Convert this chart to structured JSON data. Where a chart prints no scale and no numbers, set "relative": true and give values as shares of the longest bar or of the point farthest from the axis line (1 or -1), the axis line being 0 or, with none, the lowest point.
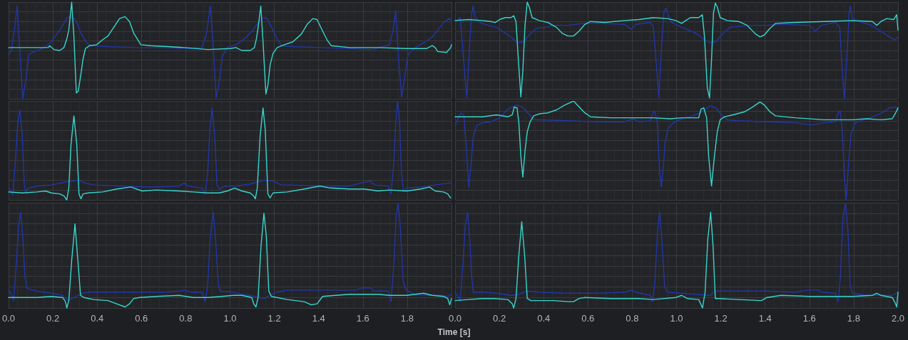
{
  "chart_data": [
    {
      "type": "line",
      "relative": true,
      "xlim": [
        0,
        2
      ],
      "xticks": [
        0,
        0.2,
        0.4,
        0.6,
        0.8,
        1,
        1.2,
        1.4,
        1.6,
        1.8,
        2
      ],
      "tick_labels": false,
      "grid": true,
      "series": [
        {
          "color": "#2236a8",
          "x": [
            0,
            0.013,
            0.026,
            0.039,
            0.064,
            0.08,
            0.092,
            0.116,
            0.141,
            0.167,
            0.193,
            0.218,
            0.244,
            0.263,
            0.276,
            0.302,
            0.327,
            0.353,
            0.372,
            0.449,
            0.578,
            0.706,
            0.809,
            0.873,
            0.892,
            0.911,
            0.924,
            0.937,
            0.953,
            0.965,
            0.988,
            1.027,
            1.065,
            1.104,
            1.13,
            1.149,
            1.168,
            1.187,
            1.213,
            1.232,
            1.284,
            1.412,
            1.54,
            1.643,
            1.72,
            1.736,
            1.748,
            1.761,
            1.775,
            1.791,
            1.804,
            1.836,
            1.874,
            1.913,
            1.938,
            1.964,
            1.99,
            2.0
          ],
          "values": [
            0.46,
            0.5,
            0.71,
            0.96,
            0.0,
            0.23,
            0.46,
            0.49,
            0.51,
            0.54,
            0.59,
            0.67,
            0.76,
            0.83,
            0.85,
            0.82,
            0.68,
            0.58,
            0.55,
            0.54,
            0.53,
            0.53,
            0.52,
            0.53,
            0.65,
            0.96,
            0.56,
            0.01,
            0.2,
            0.44,
            0.53,
            0.56,
            0.62,
            0.71,
            0.8,
            0.84,
            0.83,
            0.74,
            0.62,
            0.55,
            0.54,
            0.53,
            0.52,
            0.51,
            0.56,
            0.71,
            0.91,
            0.41,
            0.02,
            0.26,
            0.46,
            0.53,
            0.58,
            0.64,
            0.71,
            0.79,
            0.83,
            0.81
          ]
        },
        {
          "color": "#38d6cc",
          "x": [
            0,
            0.18,
            0.186,
            0.205,
            0.231,
            0.25,
            0.263,
            0.272,
            0.285,
            0.295,
            0.306,
            0.315,
            0.327,
            0.336,
            0.347,
            0.366,
            0.398,
            0.424,
            0.449,
            0.475,
            0.501,
            0.526,
            0.546,
            0.565,
            0.584,
            0.597,
            0.642,
            0.719,
            0.796,
            0.899,
            1.001,
            1.027,
            1.053,
            1.091,
            1.11,
            1.119,
            1.127,
            1.139,
            1.149,
            1.162,
            1.171,
            1.181,
            1.194,
            1.213,
            1.245,
            1.284,
            1.322,
            1.348,
            1.374,
            1.393,
            1.412,
            1.438,
            1.457,
            1.54,
            1.669,
            1.797,
            1.887,
            1.913,
            1.926,
            1.938,
            1.977,
            1.996,
            2.0
          ],
          "values": [
            0.53,
            0.53,
            0.55,
            0.51,
            0.5,
            0.53,
            0.62,
            0.71,
            1.0,
            0.65,
            0.06,
            0.08,
            0.26,
            0.41,
            0.52,
            0.55,
            0.56,
            0.61,
            0.65,
            0.74,
            0.83,
            0.85,
            0.8,
            0.68,
            0.61,
            0.56,
            0.55,
            0.54,
            0.53,
            0.51,
            0.52,
            0.53,
            0.5,
            0.5,
            0.53,
            0.62,
            0.74,
            0.96,
            0.59,
            0.05,
            0.14,
            0.35,
            0.47,
            0.53,
            0.56,
            0.59,
            0.67,
            0.77,
            0.83,
            0.82,
            0.73,
            0.61,
            0.55,
            0.53,
            0.53,
            0.52,
            0.52,
            0.55,
            0.53,
            0.49,
            0.48,
            0.53,
            0.56
          ]
        }
      ]
    },
    {
      "type": "line",
      "relative": true,
      "xlim": [
        0,
        2
      ],
      "xticks": [
        0,
        0.2,
        0.4,
        0.6,
        0.8,
        1,
        1.2,
        1.4,
        1.6,
        1.8,
        2
      ],
      "tick_labels": false,
      "grid": true,
      "series": [
        {
          "color": "#2236a8",
          "x": [
            0,
            0.014,
            0.023,
            0.033,
            0.053,
            0.066,
            0.075,
            0.082,
            0.091,
            0.111,
            0.149,
            0.188,
            0.226,
            0.252,
            0.284,
            0.31,
            0.342,
            0.368,
            0.406,
            0.445,
            0.509,
            0.586,
            0.663,
            0.766,
            0.794,
            0.817,
            0.882,
            0.895,
            0.907,
            0.92,
            0.933,
            0.943,
            0.952,
            0.961,
            0.978,
            1.023,
            1.087,
            1.126,
            1.152,
            1.177,
            1.211,
            1.242,
            1.28,
            1.344,
            1.408,
            1.473,
            1.602,
            1.627,
            1.653,
            1.717,
            1.737,
            1.749,
            1.758,
            1.769,
            1.779,
            1.785,
            1.794,
            1.82,
            1.871,
            1.923,
            1.961,
            1.987,
            2.0
          ],
          "values": [
            0.8,
            0.82,
            0.84,
            0.56,
            0.01,
            0.56,
            0.89,
            0.96,
            0.84,
            0.79,
            0.76,
            0.74,
            0.68,
            0.64,
            0.58,
            0.59,
            0.68,
            0.73,
            0.74,
            0.76,
            0.76,
            0.78,
            0.78,
            0.77,
            0.72,
            0.77,
            0.79,
            0.74,
            0.41,
            0.01,
            0.56,
            0.89,
            0.94,
            0.87,
            0.79,
            0.74,
            0.68,
            0.61,
            0.58,
            0.59,
            0.68,
            0.74,
            0.75,
            0.76,
            0.76,
            0.77,
            0.76,
            0.7,
            0.76,
            0.79,
            0.74,
            0.26,
            0.0,
            0.41,
            0.89,
            0.96,
            0.83,
            0.8,
            0.77,
            0.7,
            0.64,
            0.61,
            0.64
          ]
        },
        {
          "color": "#38d6cc",
          "x": [
            0,
            0.059,
            0.123,
            0.162,
            0.181,
            0.201,
            0.226,
            0.252,
            0.265,
            0.275,
            0.284,
            0.297,
            0.306,
            0.316,
            0.326,
            0.335,
            0.348,
            0.38,
            0.419,
            0.458,
            0.483,
            0.509,
            0.535,
            0.56,
            0.586,
            0.612,
            0.676,
            0.766,
            0.83,
            0.895,
            0.959,
            0.997,
            1.023,
            1.042,
            1.062,
            1.1,
            1.116,
            1.126,
            1.139,
            1.149,
            1.158,
            1.167,
            1.175,
            1.184,
            1.197,
            1.229,
            1.28,
            1.319,
            1.357,
            1.377,
            1.396,
            1.422,
            1.447,
            1.537,
            1.666,
            1.794,
            1.884,
            1.904,
            1.923,
            1.949,
            1.981,
            1.994,
            2.0
          ],
          "values": [
            0.81,
            0.82,
            0.81,
            0.8,
            0.79,
            0.82,
            0.84,
            0.84,
            0.86,
            0.8,
            0.47,
            0.02,
            0.29,
            0.77,
            1.0,
            0.95,
            0.84,
            0.81,
            0.79,
            0.74,
            0.68,
            0.65,
            0.65,
            0.7,
            0.77,
            0.8,
            0.79,
            0.81,
            0.82,
            0.84,
            0.83,
            0.81,
            0.78,
            0.81,
            0.84,
            0.84,
            0.87,
            0.65,
            0.11,
            0.01,
            0.41,
            0.89,
            0.99,
            0.95,
            0.84,
            0.81,
            0.8,
            0.76,
            0.67,
            0.64,
            0.66,
            0.73,
            0.78,
            0.79,
            0.8,
            0.81,
            0.8,
            0.76,
            0.8,
            0.83,
            0.82,
            0.87,
            0.71
          ]
        }
      ]
    },
    {
      "type": "line",
      "relative": true,
      "xlim": [
        0,
        2
      ],
      "xticks": [
        0,
        0.2,
        0.4,
        0.6,
        0.8,
        1,
        1.2,
        1.4,
        1.6,
        1.8,
        2
      ],
      "tick_labels": false,
      "grid": true,
      "series": [
        {
          "color": "#2236a8",
          "x": [
            0,
            0.01,
            0.019,
            0.032,
            0.041,
            0.051,
            0.062,
            0.071,
            0.077,
            0.09,
            0.128,
            0.193,
            0.257,
            0.315,
            0.347,
            0.385,
            0.513,
            0.642,
            0.77,
            0.793,
            0.809,
            0.873,
            0.888,
            0.899,
            0.909,
            0.919,
            0.931,
            0.941,
            0.95,
            0.976,
            1.027,
            1.091,
            1.155,
            1.194,
            1.232,
            1.284,
            1.412,
            1.54,
            1.592,
            1.63,
            1.656,
            1.714,
            1.727,
            1.739,
            1.748,
            1.756,
            1.765,
            1.774,
            1.784,
            1.797,
            1.861,
            1.926,
            1.99,
            2.0
          ],
          "values": [
            0.12,
            0.08,
            0.05,
            0.42,
            0.77,
            0.91,
            0.65,
            0.15,
            0.08,
            0.12,
            0.14,
            0.15,
            0.18,
            0.2,
            0.17,
            0.15,
            0.14,
            0.13,
            0.14,
            0.17,
            0.14,
            0.12,
            0.06,
            0.27,
            0.71,
            0.93,
            0.65,
            0.15,
            0.11,
            0.14,
            0.14,
            0.16,
            0.2,
            0.19,
            0.15,
            0.15,
            0.14,
            0.14,
            0.17,
            0.19,
            0.15,
            0.14,
            0.06,
            0.36,
            0.77,
            1.0,
            0.82,
            0.27,
            0.08,
            0.12,
            0.13,
            0.15,
            0.17,
            0.17
          ]
        },
        {
          "color": "#38d6cc",
          "x": [
            0,
            0.064,
            0.128,
            0.167,
            0.193,
            0.231,
            0.25,
            0.263,
            0.272,
            0.282,
            0.295,
            0.308,
            0.318,
            0.327,
            0.336,
            0.359,
            0.424,
            0.488,
            0.552,
            0.603,
            0.668,
            0.77,
            0.834,
            0.899,
            0.95,
            0.988,
            1.021,
            1.053,
            1.091,
            1.107,
            1.114,
            1.123,
            1.136,
            1.149,
            1.159,
            1.171,
            1.181,
            1.194,
            1.258,
            1.335,
            1.406,
            1.451,
            1.54,
            1.605,
            1.669,
            1.72,
            1.797,
            1.861,
            1.9,
            1.926,
            1.964,
            1.983,
            1.996
          ],
          "values": [
            0.08,
            0.07,
            0.08,
            0.09,
            0.07,
            0.06,
            0.04,
            0.0,
            0.12,
            0.56,
            0.85,
            0.56,
            0.06,
            0.01,
            0.06,
            0.07,
            0.08,
            0.11,
            0.13,
            0.09,
            0.1,
            0.09,
            0.08,
            0.07,
            0.07,
            0.09,
            0.12,
            0.09,
            0.07,
            0.04,
            0.01,
            0.12,
            0.65,
            0.93,
            0.71,
            0.06,
            0.02,
            0.07,
            0.08,
            0.11,
            0.14,
            0.12,
            0.11,
            0.11,
            0.09,
            0.1,
            0.09,
            0.11,
            0.13,
            0.09,
            0.08,
            0.06,
            0.02
          ]
        }
      ]
    },
    {
      "type": "line",
      "relative": true,
      "xlim": [
        0,
        2
      ],
      "xticks": [
        0,
        0.2,
        0.4,
        0.6,
        0.8,
        1,
        1.2,
        1.4,
        1.6,
        1.8,
        2
      ],
      "tick_labels": false,
      "grid": true,
      "series": [
        {
          "color": "#2236a8",
          "x": [
            0,
            0.014,
            0.027,
            0.04,
            0.049,
            0.062,
            0.072,
            0.082,
            0.098,
            0.123,
            0.162,
            0.201,
            0.239,
            0.278,
            0.303,
            0.329,
            0.355,
            0.38,
            0.509,
            0.638,
            0.766,
            0.805,
            0.83,
            0.882,
            0.895,
            0.902,
            0.913,
            0.923,
            0.931,
            0.94,
            0.949,
            0.961,
            0.985,
            1.023,
            1.075,
            1.113,
            1.152,
            1.177,
            1.203,
            1.229,
            1.28,
            1.408,
            1.537,
            1.602,
            1.614,
            1.666,
            1.717,
            1.733,
            1.74,
            1.749,
            1.758,
            1.766,
            1.775,
            1.788,
            1.807,
            1.846,
            1.897,
            1.936,
            1.961,
            1.987,
            2.0
          ],
          "values": [
            0.75,
            0.83,
            0.88,
            0.85,
            0.58,
            0.13,
            0.36,
            0.64,
            0.75,
            0.78,
            0.79,
            0.83,
            0.92,
            0.96,
            0.94,
            0.88,
            0.81,
            0.81,
            0.8,
            0.79,
            0.79,
            0.82,
            0.79,
            0.8,
            0.89,
            0.89,
            0.78,
            0.31,
            0.13,
            0.33,
            0.58,
            0.72,
            0.78,
            0.82,
            0.85,
            0.89,
            0.95,
            0.93,
            0.86,
            0.81,
            0.8,
            0.79,
            0.78,
            0.76,
            0.76,
            0.78,
            0.79,
            0.89,
            0.89,
            0.67,
            0.22,
            0.0,
            0.31,
            0.67,
            0.78,
            0.81,
            0.85,
            0.89,
            0.93,
            0.94,
            0.92
          ]
        },
        {
          "color": "#38d6cc",
          "x": [
            0,
            0.123,
            0.188,
            0.239,
            0.258,
            0.267,
            0.28,
            0.288,
            0.297,
            0.306,
            0.316,
            0.326,
            0.339,
            0.355,
            0.38,
            0.419,
            0.458,
            0.496,
            0.535,
            0.56,
            0.586,
            0.612,
            0.702,
            0.792,
            0.895,
            0.972,
            1.023,
            1.1,
            1.111,
            1.123,
            1.136,
            1.145,
            1.158,
            1.171,
            1.184,
            1.197,
            1.216,
            1.254,
            1.306,
            1.344,
            1.377,
            1.396,
            1.422,
            1.447,
            1.537,
            1.666,
            1.794,
            1.859,
            1.923,
            1.974,
            1.994,
            2.0
          ],
          "values": [
            0.84,
            0.84,
            0.86,
            0.84,
            0.86,
            0.94,
            0.93,
            0.78,
            0.44,
            0.23,
            0.5,
            0.69,
            0.79,
            0.85,
            0.87,
            0.88,
            0.91,
            0.96,
            1.0,
            0.94,
            0.88,
            0.84,
            0.83,
            0.83,
            0.83,
            0.82,
            0.83,
            0.83,
            0.92,
            0.93,
            0.83,
            0.44,
            0.14,
            0.44,
            0.69,
            0.81,
            0.84,
            0.86,
            0.89,
            0.94,
            0.99,
            0.96,
            0.89,
            0.85,
            0.83,
            0.81,
            0.81,
            0.82,
            0.81,
            0.82,
            0.9,
            0.93
          ]
        }
      ]
    },
    {
      "type": "line",
      "relative": true,
      "xlim": [
        0,
        2
      ],
      "xticks": [
        {
          "value": 0,
          "label": "0.0"
        },
        0.2,
        0.4,
        0.6,
        0.8,
        {
          "value": 1,
          "label": "1.0"
        },
        1.2,
        1.4,
        1.6,
        1.8,
        {
          "value": 2,
          "label": null
        }
      ],
      "tick_labels": "x",
      "grid": true,
      "xlabel": "Time [s]",
      "series": [
        {
          "color": "#2236a8",
          "x": [
            0,
            0.013,
            0.023,
            0.036,
            0.046,
            0.055,
            0.064,
            0.074,
            0.083,
            0.103,
            0.128,
            0.193,
            0.244,
            0.257,
            0.27,
            0.295,
            0.334,
            0.359,
            0.449,
            0.578,
            0.706,
            0.77,
            0.796,
            0.822,
            0.873,
            0.888,
            0.899,
            0.911,
            0.924,
            0.935,
            0.947,
            0.956,
            1.014,
            1.053,
            1.091,
            1.13,
            1.155,
            1.181,
            1.207,
            1.258,
            1.348,
            1.476,
            1.566,
            1.598,
            1.637,
            1.65,
            1.714,
            1.727,
            1.739,
            1.75,
            1.759,
            1.769,
            1.782,
            1.795,
            1.836,
            1.9,
            1.951,
            1.983,
            2.0
          ],
          "values": [
            0.17,
            0.13,
            0.07,
            0.45,
            0.8,
            0.91,
            0.68,
            0.3,
            0.19,
            0.17,
            0.16,
            0.14,
            0.12,
            0.09,
            0.07,
            0.1,
            0.14,
            0.15,
            0.15,
            0.15,
            0.15,
            0.16,
            0.17,
            0.15,
            0.15,
            0.06,
            0.22,
            0.68,
            0.91,
            0.65,
            0.22,
            0.16,
            0.15,
            0.13,
            0.12,
            0.1,
            0.09,
            0.12,
            0.15,
            0.17,
            0.17,
            0.17,
            0.17,
            0.19,
            0.19,
            0.16,
            0.16,
            0.06,
            0.39,
            0.86,
            1.0,
            0.77,
            0.25,
            0.17,
            0.13,
            0.12,
            0.12,
            0.11,
            0.13
          ]
        },
        {
          "color": "#38d6cc",
          "x": [
            0,
            0.064,
            0.128,
            0.193,
            0.244,
            0.257,
            0.263,
            0.272,
            0.285,
            0.3,
            0.313,
            0.325,
            0.34,
            0.385,
            0.449,
            0.488,
            0.526,
            0.546,
            0.565,
            0.591,
            0.668,
            0.77,
            0.834,
            0.899,
            0.963,
            1.014,
            1.053,
            1.098,
            1.107,
            1.117,
            1.127,
            1.14,
            1.153,
            1.164,
            1.175,
            1.187,
            1.258,
            1.335,
            1.367,
            1.393,
            1.418,
            1.476,
            1.54,
            1.669,
            1.72,
            1.797,
            1.874,
            1.913,
            1.964,
            1.983,
            1.992,
            2.0
          ],
          "values": [
            0.1,
            0.1,
            0.1,
            0.11,
            0.1,
            0.06,
            0.0,
            0.07,
            0.45,
            0.8,
            0.45,
            0.12,
            0.1,
            0.08,
            0.07,
            0.04,
            0.01,
            0.04,
            0.09,
            0.1,
            0.11,
            0.12,
            0.1,
            0.1,
            0.11,
            0.12,
            0.12,
            0.1,
            0.04,
            0.01,
            0.1,
            0.59,
            0.9,
            0.68,
            0.16,
            0.11,
            0.08,
            0.06,
            0.03,
            0.04,
            0.11,
            0.12,
            0.13,
            0.13,
            0.12,
            0.12,
            0.14,
            0.12,
            0.11,
            0.09,
            0.03,
            0.09
          ]
        }
      ]
    },
    {
      "type": "line",
      "relative": true,
      "xlim": [
        0,
        2
      ],
      "xticks": [
        {
          "value": 0,
          "label": "0.0"
        },
        0.2,
        0.4,
        0.6,
        0.8,
        {
          "value": 1,
          "label": "1.0"
        },
        1.2,
        1.4,
        1.6,
        1.8,
        {
          "value": 2,
          "label": "2.0"
        }
      ],
      "tick_labels": "x",
      "grid": true,
      "series": [
        {
          "color": "#2236a8",
          "x": [
            0,
            0.014,
            0.023,
            0.036,
            0.046,
            0.057,
            0.066,
            0.075,
            0.082,
            0.123,
            0.188,
            0.252,
            0.29,
            0.323,
            0.38,
            0.509,
            0.638,
            0.766,
            0.798,
            0.817,
            0.882,
            0.892,
            0.902,
            0.914,
            0.924,
            0.933,
            0.946,
            0.959,
            1.023,
            1.087,
            1.152,
            1.177,
            1.28,
            1.408,
            1.537,
            1.595,
            1.64,
            1.653,
            1.717,
            1.73,
            1.74,
            1.751,
            1.763,
            1.774,
            1.784,
            1.794,
            1.859,
            1.923,
            1.974,
            2.0
          ],
          "values": [
            0.15,
            0.11,
            0.06,
            0.44,
            0.79,
            0.91,
            0.67,
            0.3,
            0.15,
            0.15,
            0.14,
            0.12,
            0.13,
            0.16,
            0.15,
            0.14,
            0.14,
            0.15,
            0.17,
            0.15,
            0.12,
            0.06,
            0.24,
            0.73,
            0.91,
            0.67,
            0.21,
            0.15,
            0.14,
            0.13,
            0.12,
            0.16,
            0.16,
            0.16,
            0.15,
            0.17,
            0.17,
            0.15,
            0.14,
            0.06,
            0.3,
            0.85,
            1.0,
            0.73,
            0.21,
            0.14,
            0.12,
            0.12,
            0.12,
            0.15
          ]
        },
        {
          "color": "#38d6cc",
          "x": [
            0,
            0.059,
            0.123,
            0.175,
            0.239,
            0.258,
            0.265,
            0.275,
            0.288,
            0.301,
            0.314,
            0.326,
            0.342,
            0.445,
            0.509,
            0.535,
            0.56,
            0.586,
            0.702,
            0.83,
            0.895,
            0.997,
            1.023,
            1.049,
            1.1,
            1.111,
            1.117,
            1.129,
            1.141,
            1.154,
            1.165,
            1.175,
            1.19,
            1.28,
            1.383,
            1.408,
            1.473,
            1.602,
            1.794,
            1.884,
            1.904,
            1.923,
            1.974,
            1.987,
            1.994,
            2.0
          ],
          "values": [
            0.07,
            0.08,
            0.09,
            0.09,
            0.08,
            0.04,
            0.0,
            0.09,
            0.5,
            0.82,
            0.5,
            0.09,
            0.07,
            0.07,
            0.06,
            0.06,
            0.09,
            0.1,
            0.09,
            0.09,
            0.08,
            0.1,
            0.12,
            0.09,
            0.08,
            0.03,
            0.0,
            0.15,
            0.65,
            0.91,
            0.59,
            0.09,
            0.09,
            0.08,
            0.07,
            0.1,
            0.12,
            0.11,
            0.11,
            0.12,
            0.14,
            0.12,
            0.1,
            0.05,
            0.01,
            0.15
          ]
        }
      ]
    }
  ]
}
